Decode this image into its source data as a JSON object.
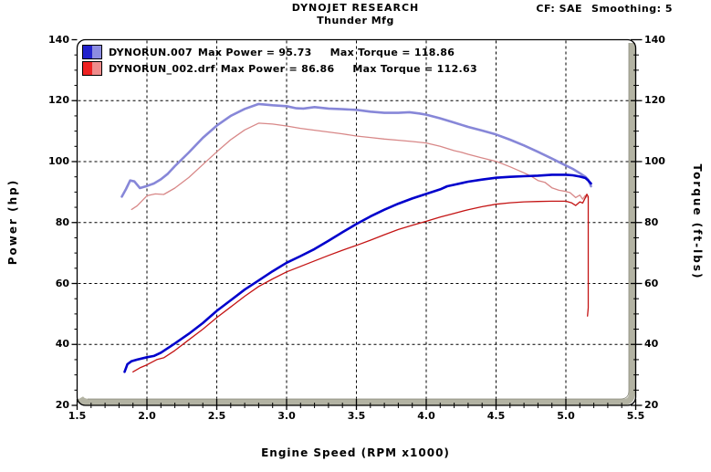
{
  "header": {
    "title": "DYNOJET RESEARCH",
    "subtitle": "Thunder Mfg",
    "correction_factor": "CF: SAE",
    "smoothing": "Smoothing: 5"
  },
  "legend": {
    "rows": [
      {
        "file": "DYNORUN.007",
        "max_power_label": "Max Power = 95.73",
        "max_torque_label": "Max Torque = 118.86",
        "max_power": 95.73,
        "max_torque": 118.86,
        "power_color": "#2222cc",
        "torque_color": "#8c8ce0"
      },
      {
        "file": "DYNORUN_002.drf",
        "max_power_label": "Max Power = 86.86",
        "max_torque_label": "Max Torque = 112.63",
        "max_power": 86.86,
        "max_torque": 112.63,
        "power_color": "#ee2222",
        "torque_color": "#ee8c8c"
      }
    ]
  },
  "colors": {
    "background": "#ffffff",
    "grid": "#000000",
    "frame": "#000000",
    "band": "#b3b3a3",
    "band_inner_edge": "#88887a",
    "text": "#000000"
  },
  "chart_data": {
    "type": "line",
    "title": "DYNOJET RESEARCH",
    "subtitle": "Thunder Mfg",
    "xlabel": "Engine Speed (RPM x1000)",
    "ylabel_left": "Power (hp)",
    "ylabel_right": "Torque (ft-lbs)",
    "xlim": [
      1.5,
      5.5
    ],
    "ylim": [
      20,
      140
    ],
    "grid": "dashed",
    "x_major_step": 0.5,
    "x_minor_step": 0.1,
    "y_major_step": 20,
    "y_minor_step": 5,
    "x_tick_labels": [
      "1.5",
      "2.0",
      "2.5",
      "3.0",
      "3.5",
      "4.0",
      "4.5",
      "5.0",
      "5.5"
    ],
    "x_tick_values": [
      1.5,
      2.0,
      2.5,
      3.0,
      3.5,
      4.0,
      4.5,
      5.0,
      5.5
    ],
    "y_tick_labels": [
      "140",
      "120",
      "100",
      "80",
      "60",
      "40",
      "20"
    ],
    "y_tick_values": [
      140,
      120,
      100,
      80,
      60,
      40,
      20
    ],
    "series": [
      {
        "name": "DYNORUN.007",
        "measure": "torque",
        "color": "#8787d8",
        "width": 2.6,
        "points": [
          [
            1.82,
            88.5
          ],
          [
            1.85,
            91.0
          ],
          [
            1.88,
            93.8
          ],
          [
            1.91,
            93.5
          ],
          [
            1.95,
            91.3
          ],
          [
            2.0,
            92.0
          ],
          [
            2.05,
            92.8
          ],
          [
            2.1,
            94.2
          ],
          [
            2.15,
            96.0
          ],
          [
            2.2,
            98.5
          ],
          [
            2.3,
            103.0
          ],
          [
            2.4,
            107.8
          ],
          [
            2.5,
            111.8
          ],
          [
            2.6,
            115.0
          ],
          [
            2.7,
            117.3
          ],
          [
            2.8,
            118.9
          ],
          [
            2.9,
            118.5
          ],
          [
            3.0,
            118.2
          ],
          [
            3.07,
            117.5
          ],
          [
            3.12,
            117.4
          ],
          [
            3.2,
            117.9
          ],
          [
            3.3,
            117.4
          ],
          [
            3.4,
            117.2
          ],
          [
            3.5,
            117.0
          ],
          [
            3.6,
            116.4
          ],
          [
            3.7,
            116.0
          ],
          [
            3.8,
            116.0
          ],
          [
            3.88,
            116.2
          ],
          [
            3.95,
            115.8
          ],
          [
            4.0,
            115.4
          ],
          [
            4.1,
            114.2
          ],
          [
            4.2,
            112.8
          ],
          [
            4.3,
            111.4
          ],
          [
            4.4,
            110.2
          ],
          [
            4.5,
            108.9
          ],
          [
            4.6,
            107.2
          ],
          [
            4.7,
            105.3
          ],
          [
            4.8,
            103.2
          ],
          [
            4.9,
            101.0
          ],
          [
            5.0,
            98.7
          ],
          [
            5.05,
            97.6
          ],
          [
            5.1,
            96.2
          ],
          [
            5.14,
            95.0
          ],
          [
            5.16,
            94.0
          ],
          [
            5.18,
            91.9
          ]
        ]
      },
      {
        "name": "DYNORUN_002.drf",
        "measure": "torque",
        "color": "#d88888",
        "width": 1.3,
        "points": [
          [
            1.89,
            84.3
          ],
          [
            1.93,
            85.5
          ],
          [
            2.0,
            88.8
          ],
          [
            2.06,
            89.4
          ],
          [
            2.12,
            89.2
          ],
          [
            2.2,
            91.3
          ],
          [
            2.3,
            94.8
          ],
          [
            2.4,
            99.0
          ],
          [
            2.5,
            103.2
          ],
          [
            2.6,
            107.2
          ],
          [
            2.7,
            110.4
          ],
          [
            2.8,
            112.6
          ],
          [
            2.9,
            112.3
          ],
          [
            3.0,
            111.7
          ],
          [
            3.1,
            110.9
          ],
          [
            3.2,
            110.3
          ],
          [
            3.3,
            109.7
          ],
          [
            3.4,
            109.1
          ],
          [
            3.5,
            108.4
          ],
          [
            3.6,
            107.9
          ],
          [
            3.7,
            107.4
          ],
          [
            3.8,
            107.0
          ],
          [
            3.9,
            106.6
          ],
          [
            4.0,
            106.1
          ],
          [
            4.1,
            105.0
          ],
          [
            4.2,
            103.6
          ],
          [
            4.25,
            103.1
          ],
          [
            4.3,
            102.4
          ],
          [
            4.4,
            101.2
          ],
          [
            4.5,
            100.1
          ],
          [
            4.6,
            98.3
          ],
          [
            4.7,
            96.3
          ],
          [
            4.75,
            95.2
          ],
          [
            4.8,
            93.8
          ],
          [
            4.85,
            93.2
          ],
          [
            4.9,
            91.4
          ],
          [
            4.95,
            90.6
          ],
          [
            5.0,
            90.2
          ],
          [
            5.03,
            89.8
          ],
          [
            5.07,
            88.2
          ],
          [
            5.1,
            89.0
          ],
          [
            5.12,
            87.7
          ],
          [
            5.14,
            88.9
          ],
          [
            5.15,
            88.3
          ]
        ]
      },
      {
        "name": "DYNORUN.007",
        "measure": "power",
        "color": "#0000cc",
        "width": 2.6,
        "points": [
          [
            1.84,
            31.0
          ],
          [
            1.86,
            33.5
          ],
          [
            1.89,
            34.5
          ],
          [
            1.93,
            35.0
          ],
          [
            2.0,
            35.8
          ],
          [
            2.05,
            36.2
          ],
          [
            2.1,
            37.3
          ],
          [
            2.15,
            38.8
          ],
          [
            2.2,
            40.3
          ],
          [
            2.3,
            43.5
          ],
          [
            2.4,
            47.0
          ],
          [
            2.5,
            51.0
          ],
          [
            2.6,
            54.5
          ],
          [
            2.7,
            58.0
          ],
          [
            2.8,
            61.0
          ],
          [
            2.9,
            64.0
          ],
          [
            3.0,
            66.8
          ],
          [
            3.1,
            69.0
          ],
          [
            3.2,
            71.3
          ],
          [
            3.3,
            74.0
          ],
          [
            3.4,
            76.8
          ],
          [
            3.5,
            79.5
          ],
          [
            3.6,
            82.0
          ],
          [
            3.7,
            84.2
          ],
          [
            3.8,
            86.2
          ],
          [
            3.9,
            87.9
          ],
          [
            4.0,
            89.4
          ],
          [
            4.1,
            90.9
          ],
          [
            4.15,
            91.9
          ],
          [
            4.2,
            92.4
          ],
          [
            4.3,
            93.4
          ],
          [
            4.4,
            94.1
          ],
          [
            4.5,
            94.7
          ],
          [
            4.6,
            95.0
          ],
          [
            4.7,
            95.2
          ],
          [
            4.8,
            95.4
          ],
          [
            4.9,
            95.7
          ],
          [
            5.0,
            95.7
          ],
          [
            5.05,
            95.5
          ],
          [
            5.1,
            95.1
          ],
          [
            5.14,
            94.6
          ],
          [
            5.16,
            93.8
          ],
          [
            5.18,
            92.8
          ]
        ]
      },
      {
        "name": "DYNORUN_002.drf",
        "measure": "power",
        "color": "#c41414",
        "width": 1.3,
        "points": [
          [
            1.9,
            31.0
          ],
          [
            1.95,
            32.3
          ],
          [
            2.0,
            33.3
          ],
          [
            2.07,
            35.0
          ],
          [
            2.12,
            35.6
          ],
          [
            2.2,
            38.0
          ],
          [
            2.3,
            41.5
          ],
          [
            2.4,
            45.0
          ],
          [
            2.5,
            48.8
          ],
          [
            2.6,
            52.3
          ],
          [
            2.7,
            55.8
          ],
          [
            2.8,
            59.0
          ],
          [
            2.9,
            61.5
          ],
          [
            3.0,
            63.8
          ],
          [
            3.1,
            65.6
          ],
          [
            3.2,
            67.4
          ],
          [
            3.3,
            69.2
          ],
          [
            3.4,
            70.9
          ],
          [
            3.5,
            72.5
          ],
          [
            3.6,
            74.2
          ],
          [
            3.7,
            76.0
          ],
          [
            3.8,
            77.7
          ],
          [
            3.9,
            79.1
          ],
          [
            4.0,
            80.4
          ],
          [
            4.1,
            81.8
          ],
          [
            4.2,
            83.0
          ],
          [
            4.3,
            84.2
          ],
          [
            4.4,
            85.2
          ],
          [
            4.5,
            86.0
          ],
          [
            4.6,
            86.5
          ],
          [
            4.7,
            86.8
          ],
          [
            4.8,
            86.9
          ],
          [
            4.9,
            87.0
          ],
          [
            5.0,
            87.0
          ],
          [
            5.04,
            86.5
          ],
          [
            5.07,
            85.6
          ],
          [
            5.1,
            86.8
          ],
          [
            5.12,
            86.4
          ],
          [
            5.14,
            88.2
          ],
          [
            5.15,
            89.3
          ],
          [
            5.16,
            88.5
          ],
          [
            5.16,
            52.0
          ],
          [
            5.155,
            49.3
          ]
        ]
      }
    ]
  }
}
